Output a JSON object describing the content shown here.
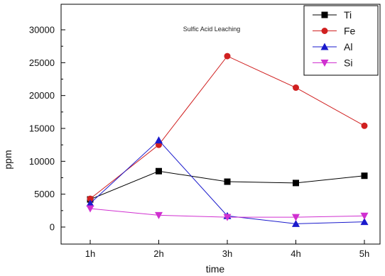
{
  "chart_data": {
    "type": "line",
    "title": "Sulfic Acid Leaching",
    "xlabel": "time",
    "ylabel": "ppm",
    "categories": [
      "1h",
      "2h",
      "3h",
      "4h",
      "5h"
    ],
    "y_ticks": [
      "0",
      "5000",
      "10000",
      "15000",
      "20000",
      "25000",
      "30000"
    ],
    "ylim": [
      -2800,
      30000
    ],
    "grid": false,
    "legend_position": "top-right",
    "series": [
      {
        "name": "Ti",
        "values": [
          4200,
          8500,
          6900,
          6700,
          7800
        ],
        "color": "#000000",
        "marker": "square"
      },
      {
        "name": "Fe",
        "values": [
          4300,
          12500,
          26000,
          21200,
          15400
        ],
        "color": "#d02020",
        "marker": "circle"
      },
      {
        "name": "Al",
        "values": [
          3600,
          13200,
          1700,
          500,
          800
        ],
        "color": "#1a1acc",
        "marker": "triangle-up"
      },
      {
        "name": "Si",
        "values": [
          2800,
          1800,
          1500,
          1500,
          1700
        ],
        "color": "#d030d0",
        "marker": "triangle-down"
      }
    ]
  }
}
